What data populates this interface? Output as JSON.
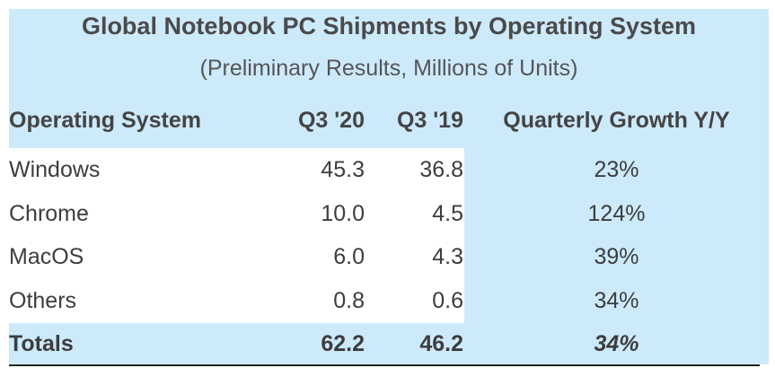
{
  "title": "Global Notebook PC Shipments by Operating System",
  "subtitle": "(Preliminary Results, Millions of Units)",
  "headers": [
    "Operating System",
    "Q3 '20",
    "Q3 '19",
    "Quarterly Growth Y/Y"
  ],
  "rows": [
    {
      "os": "Windows",
      "q3_20": "45.3",
      "q3_19": "36.8",
      "growth": "23%"
    },
    {
      "os": "Chrome",
      "q3_20": "10.0",
      "q3_19": "4.5",
      "growth": "124%"
    },
    {
      "os": "MacOS",
      "q3_20": "6.0",
      "q3_19": "4.3",
      "growth": "39%"
    },
    {
      "os": "Others",
      "q3_20": "0.8",
      "q3_19": "0.6",
      "growth": "34%"
    }
  ],
  "totals": {
    "label": "Totals",
    "q3_20": "62.2",
    "q3_19": "46.2",
    "growth": "34%"
  },
  "colors": {
    "band": "#cdeafb",
    "text": "#3d3d3d"
  }
}
